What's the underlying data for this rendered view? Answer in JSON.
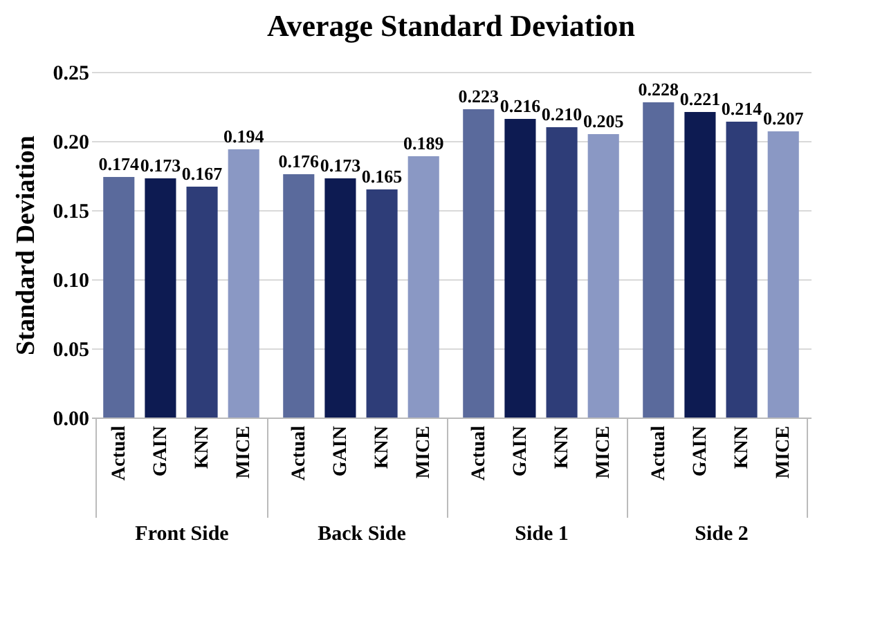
{
  "chart_data": {
    "type": "bar",
    "title": "Average Standard Deviation",
    "ylabel": "Standard Deviation",
    "categories": [
      "Front Side",
      "Back Side",
      "Side 1",
      "Side 2"
    ],
    "series": [
      {
        "name": "Actual",
        "color": "#5a6a9c",
        "values": [
          0.174,
          0.176,
          0.223,
          0.228
        ],
        "value_labels": [
          "0.174",
          "0.176",
          "0.223",
          "0.228"
        ]
      },
      {
        "name": "GAIN",
        "color": "#0d1b52",
        "values": [
          0.173,
          0.173,
          0.216,
          0.221
        ],
        "value_labels": [
          "0.173",
          "0.173",
          "0.216",
          "0.221"
        ]
      },
      {
        "name": "KNN",
        "color": "#2e3d78",
        "values": [
          0.167,
          0.165,
          0.21,
          0.214
        ],
        "value_labels": [
          "0.167",
          "0.165",
          "0.210",
          "0.214"
        ]
      },
      {
        "name": "MICE",
        "color": "#8a98c4",
        "values": [
          0.194,
          0.189,
          0.205,
          0.207
        ],
        "value_labels": [
          "0.194",
          "0.189",
          "0.205",
          "0.207"
        ]
      }
    ],
    "ylim": [
      0,
      0.25
    ],
    "yticks": [
      {
        "value": 0,
        "label": "0.00"
      },
      {
        "value": 0.05,
        "label": "0.05"
      },
      {
        "value": 0.1,
        "label": "0.10"
      },
      {
        "value": 0.15,
        "label": "0.15"
      },
      {
        "value": 0.2,
        "label": "0.20"
      },
      {
        "value": 0.25,
        "label": "0.25"
      }
    ],
    "grid": "y",
    "legend": false
  }
}
